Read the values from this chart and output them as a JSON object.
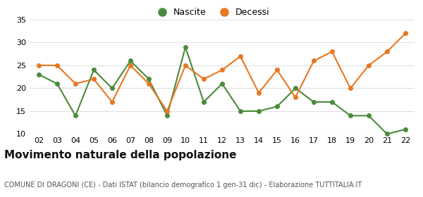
{
  "years": [
    "02",
    "03",
    "04",
    "05",
    "06",
    "07",
    "08",
    "09",
    "10",
    "11",
    "12",
    "13",
    "14",
    "15",
    "16",
    "17",
    "18",
    "19",
    "20",
    "21",
    "22"
  ],
  "nascite": [
    23,
    21,
    14,
    24,
    20,
    26,
    22,
    14,
    29,
    17,
    21,
    15,
    15,
    16,
    20,
    17,
    17,
    14,
    14,
    10,
    11
  ],
  "decessi": [
    25,
    25,
    21,
    22,
    17,
    25,
    21,
    15,
    25,
    22,
    24,
    27,
    19,
    24,
    18,
    26,
    28,
    20,
    25,
    28,
    32
  ],
  "nascite_color": "#4a8a3a",
  "decessi_color": "#e87722",
  "ylim": [
    10,
    35
  ],
  "yticks": [
    10,
    15,
    20,
    25,
    30,
    35
  ],
  "title": "Movimento naturale della popolazione",
  "subtitle": "COMUNE DI DRAGONI (CE) - Dati ISTAT (bilancio demografico 1 gen-31 dic) - Elaborazione TUTTITALIA.IT",
  "legend_nascite": "Nascite",
  "legend_decessi": "Decessi",
  "bg_color": "#ffffff",
  "plot_bg_color": "#ffffff",
  "grid_color": "#e0e0e0",
  "marker_size": 4,
  "line_width": 1.5,
  "tick_fontsize": 8,
  "title_fontsize": 11,
  "subtitle_fontsize": 7,
  "legend_fontsize": 9
}
